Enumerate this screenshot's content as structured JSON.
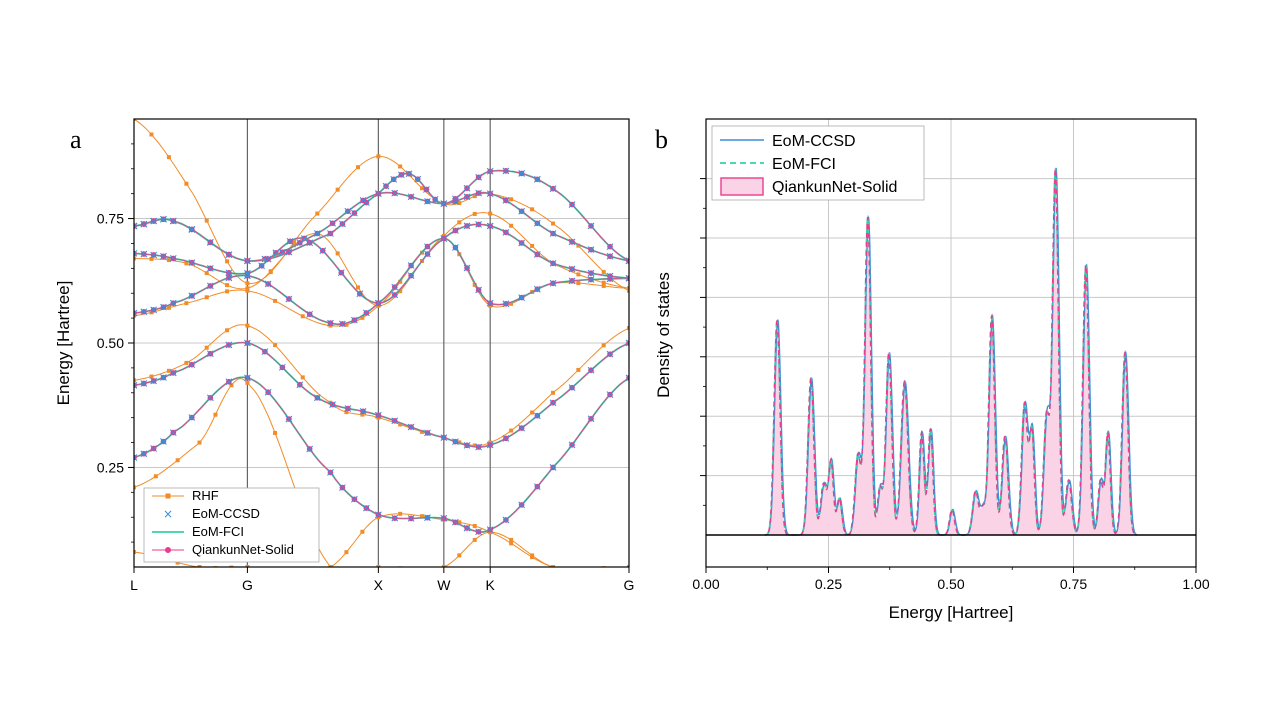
{
  "colors": {
    "rhf": "#f28c28",
    "ccsd": "#3a8fd9",
    "fci": "#36d1a8",
    "qiankun": "#ea3c8c",
    "dos_fill": "#fbd3e7",
    "grid": "#c8c8c8",
    "kline": "#666666"
  },
  "chart_data": [
    {
      "type": "line",
      "panel_label": "a",
      "ylabel": "Energy [Hartree]",
      "xlabel": "",
      "ylim": [
        0.05,
        0.95
      ],
      "yticks": [
        0.25,
        0.5,
        0.75
      ],
      "ytick_labels": [
        "0.25",
        "0.50",
        "0.75"
      ],
      "kpoints": [
        {
          "label": "L",
          "x": 0
        },
        {
          "label": "G",
          "x": 0.866
        },
        {
          "label": "X",
          "x": 1.866
        },
        {
          "label": "W",
          "x": 2.366
        },
        {
          "label": "K",
          "x": 2.72
        },
        {
          "label": "G",
          "x": 3.78
        }
      ],
      "xlim": [
        0,
        3.78
      ],
      "grid": true,
      "legend": {
        "position": "bottom-left",
        "entries": [
          {
            "name": "RHF",
            "style": "line-square",
            "color_key": "rhf"
          },
          {
            "name": "EoM-CCSD",
            "style": "cross",
            "color_key": "ccsd"
          },
          {
            "name": "EoM-FCI",
            "style": "line",
            "color_key": "fci"
          },
          {
            "name": "QiankunNet-Solid",
            "style": "line-circle",
            "color_key": "qiankun"
          }
        ]
      },
      "correlated_bands": [
        {
          "x": [
            0,
            0.3,
            0.866,
            1.5,
            1.866,
            2.366,
            2.72,
            3.2,
            3.78
          ],
          "y": [
            0.27,
            0.32,
            0.43,
            0.24,
            0.155,
            0.148,
            0.125,
            0.25,
            0.43
          ]
        },
        {
          "x": [
            0,
            0.3,
            0.866,
            1.4,
            1.866,
            2.366,
            2.72,
            3.2,
            3.78
          ],
          "y": [
            0.415,
            0.44,
            0.5,
            0.39,
            0.355,
            0.31,
            0.295,
            0.38,
            0.5
          ]
        },
        {
          "x": [
            0,
            0.3,
            0.866,
            1.5,
            1.866,
            2.366,
            2.72,
            3.2,
            3.78
          ],
          "y": [
            0.56,
            0.58,
            0.635,
            0.54,
            0.58,
            0.71,
            0.58,
            0.62,
            0.63
          ]
        },
        {
          "x": [
            0,
            0.3,
            0.866,
            1.3,
            1.866,
            2.366,
            2.72,
            3.2,
            3.78
          ],
          "y": [
            0.68,
            0.67,
            0.64,
            0.71,
            0.58,
            0.71,
            0.735,
            0.66,
            0.63
          ]
        },
        {
          "x": [
            0,
            0.3,
            0.866,
            1.4,
            1.866,
            2.366,
            2.72,
            3.2,
            3.78
          ],
          "y": [
            0.735,
            0.745,
            0.665,
            0.72,
            0.8,
            0.78,
            0.8,
            0.72,
            0.665
          ]
        },
        {
          "x": [
            0,
            0.3,
            0.866,
            1.5,
            1.866,
            2.1,
            2.366,
            2.72,
            3.2,
            3.78
          ],
          "y": [
            0.735,
            0.745,
            0.665,
            0.72,
            0.8,
            0.84,
            0.78,
            0.845,
            0.81,
            0.665
          ]
        }
      ],
      "rhf_bands": [
        {
          "x": [
            0,
            0.5,
            0.866,
            1.5,
            1.866,
            2.366,
            2.72,
            3.2,
            3.78
          ],
          "y": [
            0.21,
            0.3,
            0.42,
            0.05,
            0.05,
            0.05,
            0.12,
            0.05,
            0.05
          ]
        },
        {
          "x": [
            0,
            0.5,
            0.866,
            1.5,
            1.866,
            2.366,
            2.72,
            3.2,
            3.78
          ],
          "y": [
            0.08,
            0.05,
            0.05,
            0.05,
            0.15,
            0.145,
            0.12,
            0.05,
            0.05
          ]
        },
        {
          "x": [
            0,
            0.4,
            0.866,
            1.5,
            1.866,
            2.366,
            2.72,
            3.2,
            3.78
          ],
          "y": [
            0.425,
            0.46,
            0.535,
            0.38,
            0.35,
            0.31,
            0.3,
            0.4,
            0.53
          ]
        },
        {
          "x": [
            0,
            0.4,
            0.866,
            1.5,
            1.866,
            2.366,
            2.72,
            3.2,
            3.78
          ],
          "y": [
            0.555,
            0.58,
            0.605,
            0.535,
            0.575,
            0.71,
            0.575,
            0.62,
            0.61
          ]
        },
        {
          "x": [
            0,
            0.4,
            0.866,
            1.4,
            1.866,
            2.366,
            2.72,
            3.2,
            3.78
          ],
          "y": [
            0.67,
            0.66,
            0.61,
            0.72,
            0.575,
            0.715,
            0.76,
            0.66,
            0.61
          ]
        },
        {
          "x": [
            0,
            0.4,
            0.866,
            1.4,
            1.866,
            2.366,
            2.72,
            3.2,
            3.78
          ],
          "y": [
            0.95,
            0.82,
            0.62,
            0.76,
            0.875,
            0.78,
            0.8,
            0.74,
            0.605
          ]
        }
      ]
    },
    {
      "type": "area",
      "panel_label": "b",
      "xlabel": "Energy [Hartree]",
      "ylabel": "Density of states",
      "xlim": [
        0.0,
        1.0
      ],
      "xticks": [
        0.0,
        0.25,
        0.5,
        0.75,
        1.0
      ],
      "xtick_labels": [
        "0.00",
        "0.25",
        "0.50",
        "0.75",
        "1.00"
      ],
      "ylim": [
        0,
        1.1
      ],
      "grid": true,
      "legend": {
        "position": "top-left",
        "entries": [
          {
            "name": "EoM-CCSD",
            "style": "line",
            "color_key": "ccsd"
          },
          {
            "name": "EoM-FCI",
            "style": "dashed",
            "color_key": "fci"
          },
          {
            "name": "QiankunNet-Solid",
            "style": "fill",
            "color_key": "qiankun"
          }
        ]
      },
      "peaks": [
        {
          "x": 0.145,
          "h": 0.59,
          "w": 0.006
        },
        {
          "x": 0.214,
          "h": 0.43,
          "w": 0.006
        },
        {
          "x": 0.24,
          "h": 0.14,
          "w": 0.006
        },
        {
          "x": 0.255,
          "h": 0.2,
          "w": 0.005
        },
        {
          "x": 0.272,
          "h": 0.1,
          "w": 0.005
        },
        {
          "x": 0.31,
          "h": 0.22,
          "w": 0.006
        },
        {
          "x": 0.33,
          "h": 0.87,
          "w": 0.006
        },
        {
          "x": 0.355,
          "h": 0.13,
          "w": 0.005
        },
        {
          "x": 0.373,
          "h": 0.5,
          "w": 0.006
        },
        {
          "x": 0.405,
          "h": 0.42,
          "w": 0.007
        },
        {
          "x": 0.44,
          "h": 0.28,
          "w": 0.005
        },
        {
          "x": 0.458,
          "h": 0.29,
          "w": 0.005
        },
        {
          "x": 0.502,
          "h": 0.07,
          "w": 0.005
        },
        {
          "x": 0.55,
          "h": 0.12,
          "w": 0.006
        },
        {
          "x": 0.565,
          "h": 0.07,
          "w": 0.005
        },
        {
          "x": 0.583,
          "h": 0.6,
          "w": 0.006
        },
        {
          "x": 0.61,
          "h": 0.27,
          "w": 0.006
        },
        {
          "x": 0.65,
          "h": 0.36,
          "w": 0.006
        },
        {
          "x": 0.665,
          "h": 0.28,
          "w": 0.005
        },
        {
          "x": 0.695,
          "h": 0.33,
          "w": 0.006
        },
        {
          "x": 0.713,
          "h": 1.0,
          "w": 0.006
        },
        {
          "x": 0.74,
          "h": 0.15,
          "w": 0.006
        },
        {
          "x": 0.775,
          "h": 0.74,
          "w": 0.006
        },
        {
          "x": 0.805,
          "h": 0.15,
          "w": 0.005
        },
        {
          "x": 0.82,
          "h": 0.28,
          "w": 0.005
        },
        {
          "x": 0.855,
          "h": 0.5,
          "w": 0.006
        }
      ]
    }
  ]
}
